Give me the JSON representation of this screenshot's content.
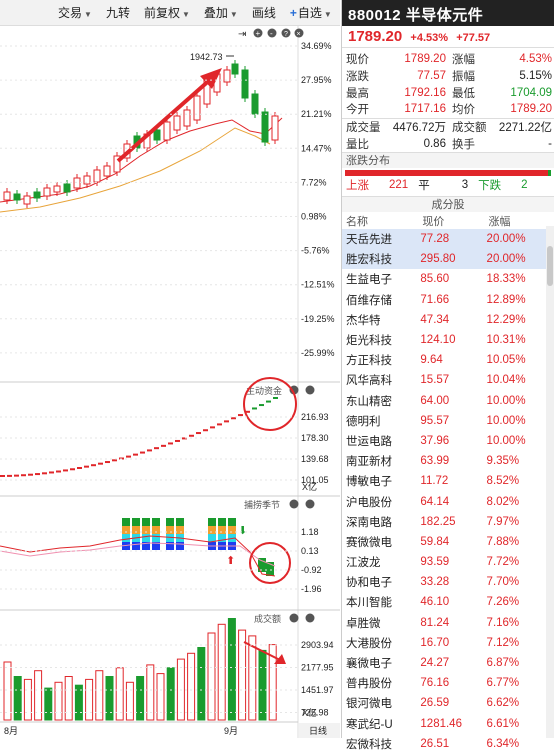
{
  "toolbar": {
    "items": [
      "交易",
      "九转",
      "前复权",
      "叠加",
      "画线",
      "自选"
    ],
    "more": "»"
  },
  "chart": {
    "price_labels": [
      "34.69%",
      "27.95%",
      "21.21%",
      "14.47%",
      "7.72%",
      "0.98%",
      "-5.76%",
      "-12.51%",
      "-19.25%",
      "-25.99%"
    ],
    "peak_label": "1942.73",
    "fund_title": "主动资金",
    "fund_labels": [
      "216.93",
      "178.30",
      "139.68",
      "101.05"
    ],
    "fund_unit": "X亿",
    "season_title": "捕捞季节",
    "season_labels": [
      "1.18",
      "0.13",
      "-0.92",
      "-1.96"
    ],
    "vol_title": "成交额",
    "vol_labels": [
      "2903.94",
      "2177.95",
      "1451.97",
      "725.98"
    ],
    "vol_unit": "X亿",
    "x_labels": [
      "8月",
      "9月"
    ],
    "x_right": "日线"
  },
  "quote": {
    "code": "880012",
    "name": "半导体元件",
    "price": "1789.20",
    "change_pct": "+4.53%",
    "change": "+77.57",
    "rows": [
      {
        "l1": "现价",
        "v1": "1789.20",
        "c1": "red",
        "l2": "涨幅",
        "v2": "4.53%",
        "c2": "red"
      },
      {
        "l1": "涨跌",
        "v1": "77.57",
        "c1": "red",
        "l2": "振幅",
        "v2": "5.15%",
        "c2": "black"
      },
      {
        "l1": "最高",
        "v1": "1792.16",
        "c1": "red",
        "l2": "最低",
        "v2": "1704.09",
        "c2": "green"
      },
      {
        "l1": "今开",
        "v1": "1717.16",
        "c1": "red",
        "l2": "均价",
        "v2": "1789.20",
        "c2": "red"
      },
      {
        "l1": "成交量",
        "v1": "4476.72万",
        "c1": "black",
        "l2": "成交额",
        "v2": "2271.22亿",
        "c2": "black"
      },
      {
        "l1": "量比",
        "v1": "0.86",
        "c1": "black",
        "l2": "换手",
        "v2": "-",
        "c2": "black"
      }
    ]
  },
  "distribution": {
    "title": "涨跌分布",
    "up_label": "上涨",
    "up": "221",
    "flat_label": "平",
    "flat": "3",
    "down_label": "下跌",
    "down": "2"
  },
  "components": {
    "title": "成分股",
    "headers": [
      "名称",
      "现价",
      "涨幅"
    ],
    "rows": [
      {
        "name": "天岳先进",
        "price": "77.28",
        "chg": "20.00%"
      },
      {
        "name": "胜宏科技",
        "price": "295.80",
        "chg": "20.00%"
      },
      {
        "name": "生益电子",
        "price": "85.60",
        "chg": "18.33%"
      },
      {
        "name": "佰维存储",
        "price": "71.66",
        "chg": "12.89%"
      },
      {
        "name": "杰华特",
        "price": "47.34",
        "chg": "12.29%"
      },
      {
        "name": "炬光科技",
        "price": "124.10",
        "chg": "10.31%"
      },
      {
        "name": "方正科技",
        "price": "9.64",
        "chg": "10.05%"
      },
      {
        "name": "风华高科",
        "price": "15.57",
        "chg": "10.04%"
      },
      {
        "name": "东山精密",
        "price": "64.00",
        "chg": "10.00%"
      },
      {
        "name": "德明利",
        "price": "95.57",
        "chg": "10.00%"
      },
      {
        "name": "世运电路",
        "price": "37.96",
        "chg": "10.00%"
      },
      {
        "name": "南亚新材",
        "price": "63.99",
        "chg": "9.35%"
      },
      {
        "name": "博敏电子",
        "price": "11.72",
        "chg": "8.52%"
      },
      {
        "name": "沪电股份",
        "price": "64.14",
        "chg": "8.02%"
      },
      {
        "name": "深南电路",
        "price": "182.25",
        "chg": "7.97%"
      },
      {
        "name": "赛微微电",
        "price": "59.84",
        "chg": "7.88%"
      },
      {
        "name": "江波龙",
        "price": "93.59",
        "chg": "7.72%"
      },
      {
        "name": "协和电子",
        "price": "33.28",
        "chg": "7.70%"
      },
      {
        "name": "本川智能",
        "price": "46.10",
        "chg": "7.26%"
      },
      {
        "name": "卓胜微",
        "price": "81.24",
        "chg": "7.16%"
      },
      {
        "name": "大港股份",
        "price": "16.70",
        "chg": "7.12%"
      },
      {
        "name": "襄微电子",
        "price": "24.27",
        "chg": "6.87%"
      },
      {
        "name": "普冉股份",
        "price": "76.16",
        "chg": "6.77%"
      },
      {
        "name": "银河微电",
        "price": "26.59",
        "chg": "6.62%"
      },
      {
        "name": "寒武纪-U",
        "price": "1281.46",
        "chg": "6.61%"
      },
      {
        "name": "宏微科技",
        "price": "26.51",
        "chg": "6.34%"
      }
    ]
  }
}
